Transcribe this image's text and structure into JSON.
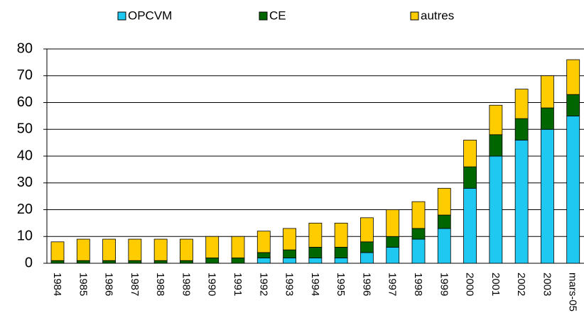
{
  "chart_data": {
    "type": "stacked_bar",
    "categories": [
      "1984",
      "1985",
      "1986",
      "1987",
      "1988",
      "1989",
      "1990",
      "1991",
      "1992",
      "1993",
      "1994",
      "1995",
      "1996",
      "1997",
      "1998",
      "1999",
      "2000",
      "2001",
      "2002",
      "2003",
      "mars-05"
    ],
    "series": [
      {
        "name": "OPCVM",
        "color": "#1ec8f0",
        "values": [
          0,
          0,
          0,
          0,
          0,
          0,
          0,
          0,
          2,
          2,
          2,
          2,
          4,
          6,
          9,
          13,
          28,
          40,
          46,
          50,
          55
        ]
      },
      {
        "name": "CE",
        "color": "#006600",
        "values": [
          1,
          1,
          1,
          1,
          1,
          1,
          2,
          2,
          2,
          3,
          4,
          4,
          4,
          4,
          4,
          5,
          8,
          8,
          8,
          8,
          8
        ]
      },
      {
        "name": "autres",
        "color": "#ffcc00",
        "values": [
          7,
          8,
          8,
          8,
          8,
          8,
          8,
          8,
          8,
          8,
          9,
          9,
          9,
          10,
          10,
          10,
          10,
          11,
          11,
          12,
          13
        ]
      }
    ],
    "ylim": [
      0,
      80
    ],
    "yticks": [
      0,
      10,
      20,
      30,
      40,
      50,
      60,
      70,
      80
    ],
    "grid": true,
    "legend": "top"
  }
}
